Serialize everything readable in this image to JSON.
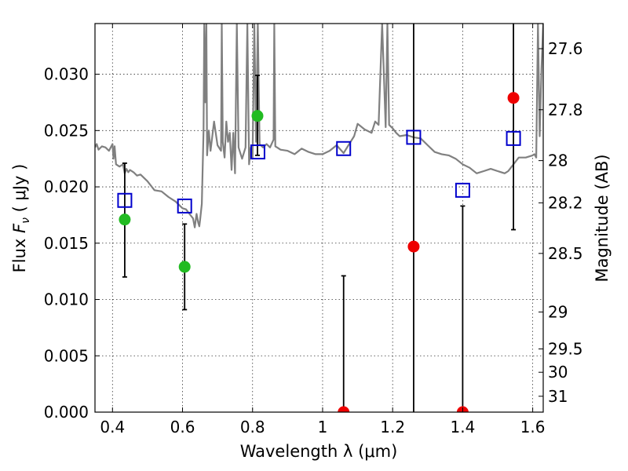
{
  "chart_data": {
    "type": "scatter",
    "xlabel": "Wavelength  λ (μm)",
    "ylabel": "Flux  F_ν  ( μJy )",
    "ylabel_right": "Magnitude (AB)",
    "xlim": [
      0.35,
      1.63
    ],
    "ylim": [
      0.0,
      0.0345
    ],
    "x_ticks": [
      0.4,
      0.6,
      0.8,
      1.0,
      1.2,
      1.4,
      1.6
    ],
    "x_tick_labels": [
      "0.4",
      "0.6",
      "0.8",
      "1",
      "1.2",
      "1.4",
      "1.6"
    ],
    "y_ticks": [
      0.0,
      0.005,
      0.01,
      0.015,
      0.02,
      0.025,
      0.03
    ],
    "y_tick_labels": [
      "0.000",
      "0.005",
      "0.010",
      "0.015",
      "0.020",
      "0.025",
      "0.030"
    ],
    "right_ticks": [
      {
        "label": "27.6",
        "flux": 0.03227
      },
      {
        "label": "27.8",
        "flux": 0.02685
      },
      {
        "label": "28",
        "flux": 0.02233
      },
      {
        "label": "28.2",
        "flux": 0.01858
      },
      {
        "label": "28.5",
        "flux": 0.01409
      },
      {
        "label": "29",
        "flux": 0.00889
      },
      {
        "label": "29.5",
        "flux": 0.00561
      },
      {
        "label": "30",
        "flux": 0.00354
      },
      {
        "label": "31",
        "flux": 0.00141
      }
    ],
    "grid": true,
    "series": [
      {
        "kind": "model-spectrum",
        "color": "#808080",
        "x": [
          0.35,
          0.355,
          0.36,
          0.37,
          0.38,
          0.39,
          0.4,
          0.403,
          0.406,
          0.41,
          0.42,
          0.43,
          0.435,
          0.44,
          0.445,
          0.45,
          0.46,
          0.47,
          0.48,
          0.5,
          0.52,
          0.54,
          0.56,
          0.58,
          0.6,
          0.61,
          0.62,
          0.63,
          0.635,
          0.64,
          0.645,
          0.648,
          0.65,
          0.655,
          0.66,
          0.662,
          0.665,
          0.668,
          0.67,
          0.675,
          0.68,
          0.69,
          0.7,
          0.71,
          0.712,
          0.715,
          0.72,
          0.725,
          0.73,
          0.735,
          0.74,
          0.745,
          0.75,
          0.755,
          0.76,
          0.77,
          0.78,
          0.785,
          0.79,
          0.795,
          0.8,
          0.805,
          0.81,
          0.815,
          0.82,
          0.83,
          0.84,
          0.85,
          0.86,
          0.862,
          0.865,
          0.87,
          0.88,
          0.9,
          0.92,
          0.94,
          0.96,
          0.98,
          1.0,
          1.02,
          1.04,
          1.06,
          1.08,
          1.09,
          1.1,
          1.12,
          1.14,
          1.15,
          1.16,
          1.17,
          1.18,
          1.185,
          1.19,
          1.2,
          1.21,
          1.22,
          1.24,
          1.26,
          1.28,
          1.3,
          1.32,
          1.34,
          1.36,
          1.38,
          1.4,
          1.42,
          1.44,
          1.46,
          1.48,
          1.5,
          1.52,
          1.53,
          1.54,
          1.55,
          1.56,
          1.58,
          1.6,
          1.605,
          1.61,
          1.615,
          1.62,
          1.625,
          1.63
        ],
        "y": [
          0.0235,
          0.0238,
          0.0233,
          0.0236,
          0.0235,
          0.0232,
          0.0238,
          0.0225,
          0.0236,
          0.022,
          0.0218,
          0.022,
          0.0212,
          0.0216,
          0.0213,
          0.0215,
          0.0213,
          0.021,
          0.0211,
          0.0205,
          0.0197,
          0.0196,
          0.0191,
          0.0187,
          0.0181,
          0.018,
          0.0176,
          0.0172,
          0.0164,
          0.0176,
          0.0168,
          0.0165,
          0.017,
          0.0185,
          0.025,
          0.0345,
          0.0275,
          0.0345,
          0.0228,
          0.025,
          0.0232,
          0.0258,
          0.0237,
          0.0232,
          0.0345,
          0.024,
          0.0226,
          0.0258,
          0.024,
          0.0248,
          0.0215,
          0.0248,
          0.0212,
          0.0345,
          0.0235,
          0.0225,
          0.0235,
          0.0345,
          0.022,
          0.0235,
          0.0225,
          0.0345,
          0.024,
          0.0345,
          0.0238,
          0.0235,
          0.0238,
          0.0235,
          0.0242,
          0.0345,
          0.0236,
          0.0235,
          0.0233,
          0.0232,
          0.0229,
          0.0234,
          0.0231,
          0.0229,
          0.0229,
          0.0232,
          0.0237,
          0.023,
          0.024,
          0.0245,
          0.0256,
          0.0251,
          0.0248,
          0.0258,
          0.0255,
          0.0345,
          0.0253,
          0.0345,
          0.0255,
          0.0252,
          0.0248,
          0.0245,
          0.0246,
          0.0244,
          0.0243,
          0.0237,
          0.0231,
          0.0229,
          0.0228,
          0.0225,
          0.022,
          0.0217,
          0.0212,
          0.0214,
          0.0216,
          0.0214,
          0.0212,
          0.0214,
          0.0218,
          0.0222,
          0.0226,
          0.0226,
          0.0228,
          0.0229,
          0.0226,
          0.0345,
          0.0245,
          0.0305,
          0.0345
        ]
      },
      {
        "kind": "model-photometry",
        "marker": "open-square",
        "color": "#0000cc",
        "x": [
          0.435,
          0.606,
          0.815,
          1.06,
          1.26,
          1.4,
          1.545
        ],
        "y": [
          0.0188,
          0.0183,
          0.0231,
          0.0234,
          0.0244,
          0.0197,
          0.0243
        ]
      },
      {
        "kind": "observed",
        "marker": "filled-circle",
        "color": "#22bb22",
        "x": [
          0.435,
          0.606,
          0.814
        ],
        "y": [
          0.0171,
          0.0129,
          0.0263
        ],
        "err_low": [
          0.012,
          0.0091,
          0.0228
        ],
        "err_high": [
          0.0221,
          0.0167,
          0.0299
        ]
      },
      {
        "kind": "observed",
        "marker": "filled-circle",
        "color": "#ee0000",
        "x": [
          1.06,
          1.26,
          1.4,
          1.545
        ],
        "y": [
          0.0,
          0.0147,
          0.0,
          0.0279
        ],
        "err_low": [
          0.0,
          0.0,
          0.0,
          0.0162
        ],
        "err_high": [
          0.0121,
          0.0345,
          0.0183,
          0.0345
        ]
      }
    ]
  }
}
